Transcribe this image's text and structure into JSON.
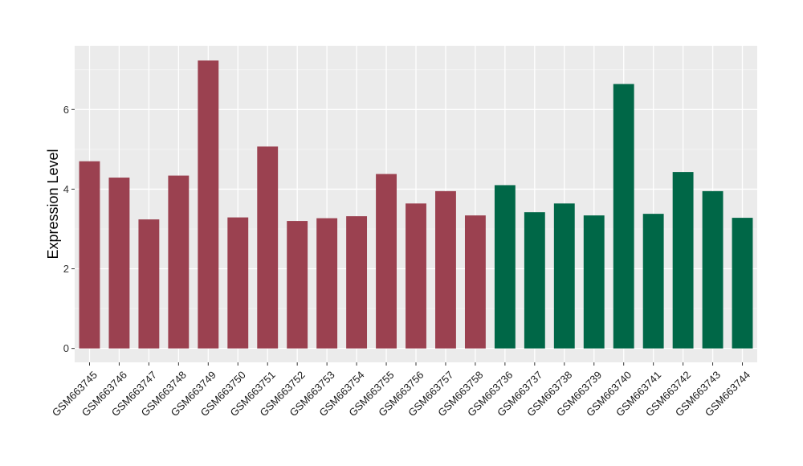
{
  "chart_data": {
    "type": "bar",
    "title": "",
    "xlabel": "",
    "ylabel": "Expression Level",
    "ylim": [
      -0.35,
      7.6
    ],
    "yticks": [
      0,
      2,
      4,
      6
    ],
    "grid": true,
    "legend": "none",
    "panel_background": "#ebebeb",
    "colors": {
      "group1": "#9b4150",
      "group2": "#006747"
    },
    "categories": [
      "GSM663745",
      "GSM663746",
      "GSM663747",
      "GSM663748",
      "GSM663749",
      "GSM663750",
      "GSM663751",
      "GSM663752",
      "GSM663753",
      "GSM663754",
      "GSM663755",
      "GSM663756",
      "GSM663757",
      "GSM663758",
      "GSM663736",
      "GSM663737",
      "GSM663738",
      "GSM663739",
      "GSM663740",
      "GSM663741",
      "GSM663742",
      "GSM663743",
      "GSM663744"
    ],
    "values": [
      4.7,
      4.29,
      3.24,
      4.34,
      7.23,
      3.29,
      5.07,
      3.2,
      3.27,
      3.32,
      4.38,
      3.64,
      3.95,
      3.34,
      4.1,
      3.42,
      3.64,
      3.34,
      6.64,
      3.38,
      4.43,
      3.95,
      3.28
    ],
    "groups": [
      1,
      1,
      1,
      1,
      1,
      1,
      1,
      1,
      1,
      1,
      1,
      1,
      1,
      1,
      2,
      2,
      2,
      2,
      2,
      2,
      2,
      2,
      2
    ]
  }
}
